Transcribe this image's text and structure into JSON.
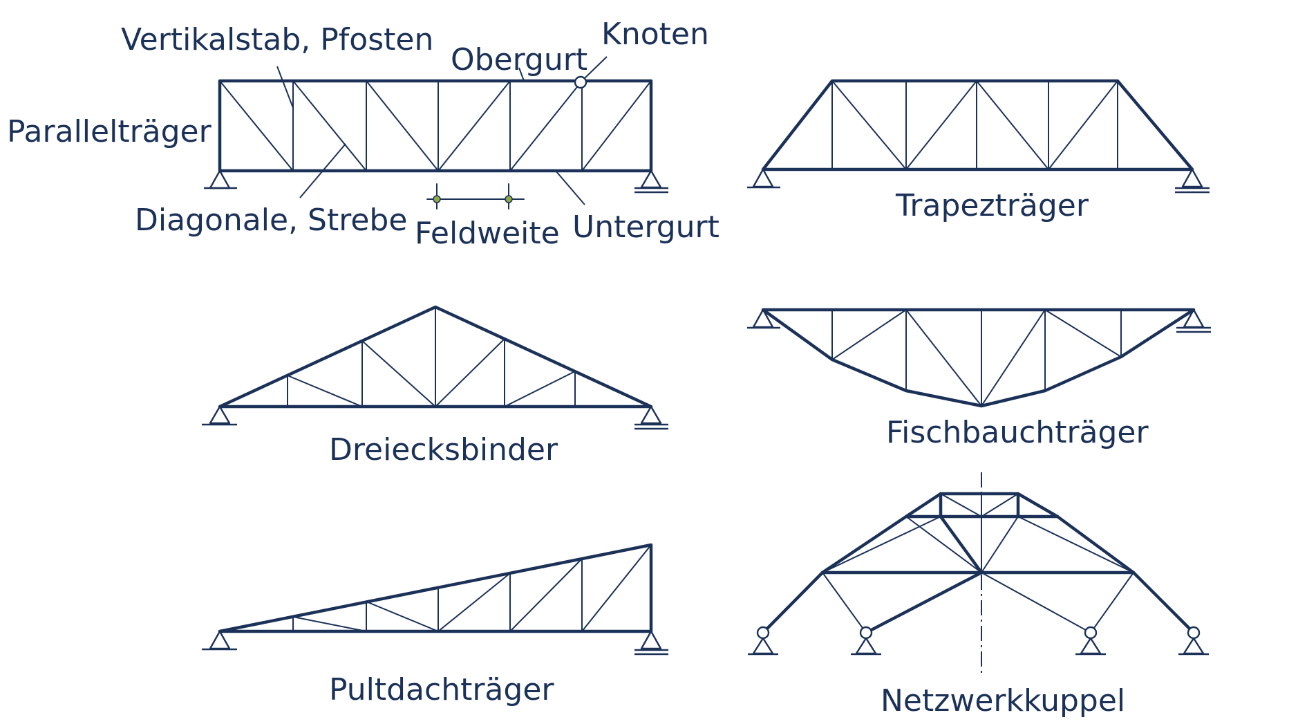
{
  "labels": {
    "vertikalstab": "Vertikalstab, Pfosten",
    "knoten": "Knoten",
    "obergurt": "Obergurt",
    "paralleltraeger": "Parallelträger",
    "diagonale": "Diagonale, Strebe",
    "feldweite": "Feldweite",
    "untergurt": "Untergurt",
    "trapeztraeger": "Trapezträger",
    "dreiecksbinder": "Dreiecksbinder",
    "fischbauchtraeger": "Fischbauchträger",
    "pultdachtraeger": "Pultdachträger",
    "netzwerkkuppel": "Netzwerkkuppel"
  },
  "colors": {
    "line": "#1b3158",
    "dimension_marker": "#8da844",
    "background": "#ffffff"
  }
}
